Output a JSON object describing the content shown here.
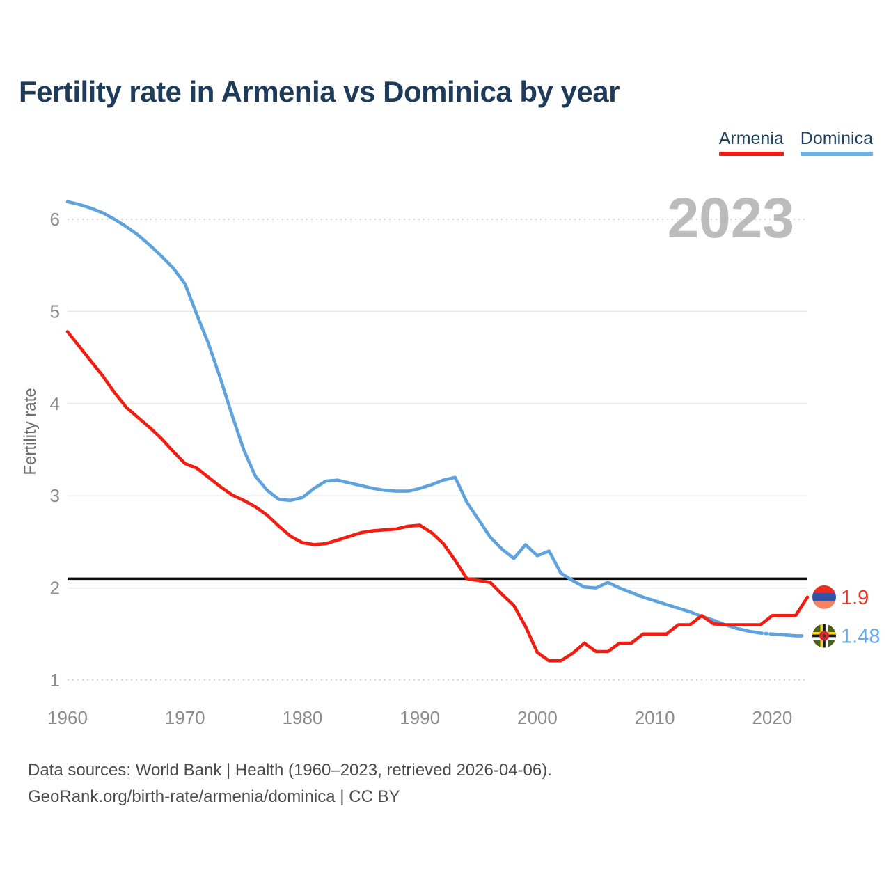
{
  "header": {
    "title": "Fertility rate in Armenia vs Dominica by year"
  },
  "legend": {
    "items": [
      {
        "label": "Armenia",
        "color": "#f01d10"
      },
      {
        "label": "Dominica",
        "color": "#6cb2e8"
      }
    ]
  },
  "watermark": "2023",
  "axes": {
    "y_label": "Fertility rate",
    "y_ticks": [
      1,
      2,
      3,
      4,
      5,
      6
    ],
    "x_ticks": [
      1960,
      1970,
      1980,
      1990,
      2000,
      2010,
      2020
    ]
  },
  "reference_line": {
    "value": 2.1,
    "color": "#0d0d0d"
  },
  "end_labels": {
    "armenia": {
      "value": "1.9",
      "color": "#e63529",
      "flag": "armenia-flag-icon",
      "flag_colors": {
        "bands": [
          "#ee2b1f",
          "#3154a8",
          "#f8815f"
        ]
      }
    },
    "dominica": {
      "value": "1.48",
      "color": "#69abe8",
      "flag": "dominica-flag-icon",
      "flag_colors": {
        "bg": "#4a611d",
        "cross": [
          "#f7d41b",
          "#1a1a1a",
          "#ffffff"
        ],
        "center": "#dc2333",
        "parrot": "#2f4d14"
      }
    }
  },
  "footer": {
    "line1": "Data sources: World Bank | Health (1960–2023, retrieved 2026-04-06).",
    "line2": "GeoRank.org/birth-rate/armenia/dominica | CC BY"
  },
  "chart_data": {
    "type": "line",
    "title": "Fertility rate in Armenia vs Dominica by year",
    "xlabel": "",
    "ylabel": "Fertility rate",
    "xlim": [
      1960,
      2023
    ],
    "ylim": [
      1,
      6.3
    ],
    "grid": true,
    "legend_position": "top-right",
    "reference_line_y": 2.1,
    "x": [
      1960,
      1961,
      1962,
      1963,
      1964,
      1965,
      1966,
      1967,
      1968,
      1969,
      1970,
      1971,
      1972,
      1973,
      1974,
      1975,
      1976,
      1977,
      1978,
      1979,
      1980,
      1981,
      1982,
      1983,
      1984,
      1985,
      1986,
      1987,
      1988,
      1989,
      1990,
      1991,
      1992,
      1993,
      1994,
      1995,
      1996,
      1997,
      1998,
      1999,
      2000,
      2001,
      2002,
      2003,
      2004,
      2005,
      2006,
      2007,
      2008,
      2009,
      2010,
      2011,
      2012,
      2013,
      2014,
      2015,
      2016,
      2017,
      2018,
      2019,
      2020,
      2021,
      2022,
      2023
    ],
    "series": [
      {
        "name": "Armenia",
        "color": "#f01d10",
        "end_value": 1.9,
        "values": [
          4.78,
          4.62,
          4.46,
          4.3,
          4.12,
          3.96,
          3.85,
          3.74,
          3.62,
          3.48,
          3.35,
          3.3,
          3.2,
          3.1,
          3.01,
          2.95,
          2.88,
          2.79,
          2.67,
          2.56,
          2.49,
          2.47,
          2.48,
          2.52,
          2.56,
          2.6,
          2.62,
          2.63,
          2.64,
          2.67,
          2.68,
          2.6,
          2.48,
          2.3,
          2.1,
          2.08,
          2.06,
          1.93,
          1.81,
          1.58,
          1.3,
          1.21,
          1.21,
          1.29,
          1.4,
          1.31,
          1.31,
          1.4,
          1.4,
          1.5,
          1.5,
          1.5,
          1.6,
          1.6,
          1.7,
          1.61,
          1.6,
          1.6,
          1.6,
          1.6,
          1.7,
          1.7,
          1.7,
          1.9
        ]
      },
      {
        "name": "Dominica",
        "color": "#5ea3de",
        "end_value": 1.48,
        "values": [
          6.19,
          6.16,
          6.12,
          6.07,
          6.0,
          5.92,
          5.83,
          5.72,
          5.6,
          5.47,
          5.3,
          4.97,
          4.65,
          4.28,
          3.88,
          3.5,
          3.21,
          3.06,
          2.96,
          2.95,
          2.98,
          3.08,
          3.16,
          3.17,
          3.14,
          3.11,
          3.08,
          3.06,
          3.05,
          3.05,
          3.08,
          3.12,
          3.17,
          3.2,
          2.93,
          2.74,
          2.55,
          2.42,
          2.32,
          2.47,
          2.35,
          2.4,
          2.16,
          2.08,
          2.01,
          2.0,
          2.06,
          2.0,
          1.95,
          1.9,
          1.86,
          1.82,
          1.78,
          1.74,
          1.69,
          1.65,
          1.6,
          1.56,
          1.53,
          1.51,
          1.5,
          1.49,
          1.48,
          1.48
        ]
      }
    ]
  }
}
